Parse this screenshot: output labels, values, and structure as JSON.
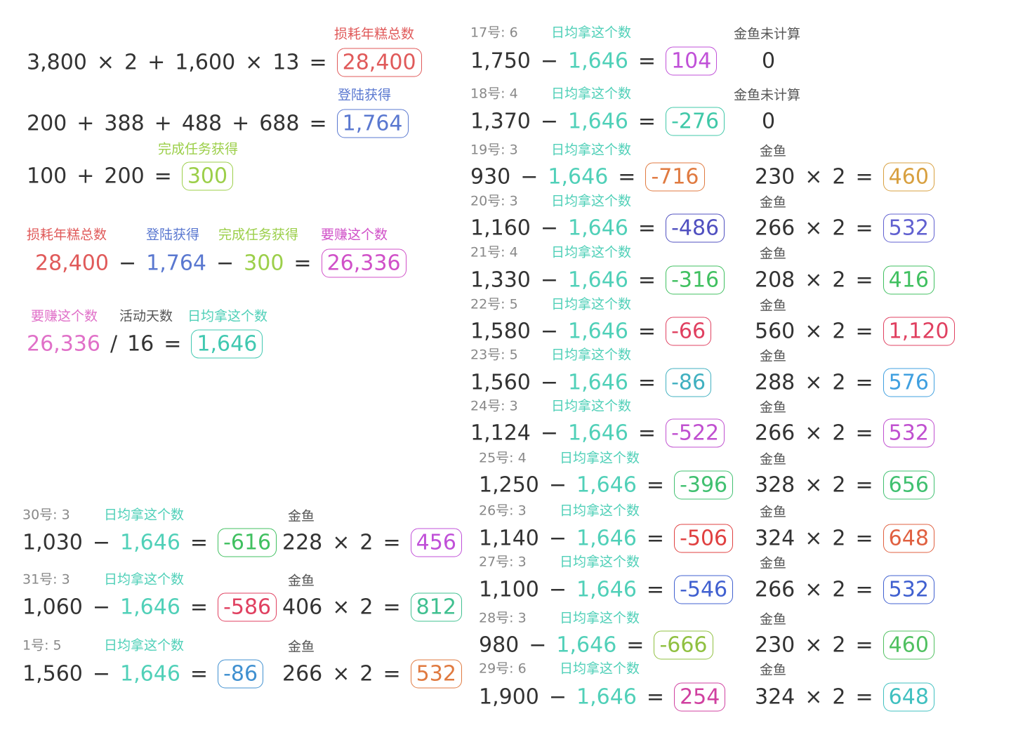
{
  "summary": [
    {
      "labels": [
        {
          "text": "损耗年糕总数",
          "color": "#e05a5a"
        }
      ],
      "expr": [
        "3,800",
        "×",
        "2",
        "+",
        "1,600",
        "×",
        "13",
        "="
      ],
      "result": "28,400",
      "result_color": "#e05a5a"
    },
    {
      "labels": [
        {
          "text": "登陆获得",
          "color": "#5a78d0"
        }
      ],
      "expr": [
        "200",
        "+",
        "388",
        "+",
        "488",
        "+",
        "688",
        "="
      ],
      "result": "1,764",
      "result_color": "#5a78d0"
    },
    {
      "labels": [
        {
          "text": "完成任务获得",
          "color": "#9ccf4a"
        }
      ],
      "expr": [
        "100",
        "+",
        "200",
        "="
      ],
      "result": "300",
      "result_color": "#9ccf4a"
    },
    {
      "labels": [
        {
          "text": "损耗年糕总数",
          "color": "#e05a5a"
        },
        {
          "text": "登陆获得",
          "color": "#5a78d0"
        },
        {
          "text": "完成任务获得",
          "color": "#9ccf4a"
        },
        {
          "text": "要赚这个数",
          "color": "#d050c8"
        }
      ],
      "expr": [
        "28,400",
        "−",
        "1,764",
        "−",
        "300",
        "="
      ],
      "expr_colors": [
        "#e05a5a",
        "#333333",
        "#5a78d0",
        "#333333",
        "#9ccf4a",
        "#333333"
      ],
      "result": "26,336",
      "result_color": "#d050c8"
    },
    {
      "labels": [
        {
          "text": "要赚这个数",
          "color": "#e070c8"
        },
        {
          "text": "活动天数",
          "color": "#555555"
        },
        {
          "text": "日均拿这个数",
          "color": "#50d0b8"
        }
      ],
      "expr": [
        "26,336",
        "/",
        "16",
        "="
      ],
      "expr_colors": [
        "#e070c8",
        "#333333",
        "#333333",
        "#333333"
      ],
      "result": "1,646",
      "result_color": "#40c8b0"
    }
  ],
  "right_column": [
    {
      "day": "17号: 6",
      "avg_label": "日均拿这个数",
      "expr": [
        "1,750",
        "−",
        "1,646",
        "="
      ],
      "result": "104",
      "result_color": "#c050d8",
      "fish_label": "金鱼未计算",
      "fish_expr": [
        "0"
      ]
    },
    {
      "day": "18号: 4",
      "avg_label": "日均拿这个数",
      "expr": [
        "1,370",
        "−",
        "1,646",
        "="
      ],
      "result": "-276",
      "result_color": "#40c8a8",
      "fish_label": "金鱼未计算",
      "fish_expr": [
        "0"
      ]
    },
    {
      "day": "19号: 3",
      "avg_label": "日均拿这个数",
      "expr": [
        "930",
        "−",
        "1,646",
        "="
      ],
      "result": "-716",
      "result_color": "#e07a40",
      "fish_label": "金鱼",
      "fish_expr": [
        "230",
        "×",
        "2",
        "="
      ],
      "fish_result": "460",
      "fish_color": "#d8a040"
    },
    {
      "day": "20号: 3",
      "avg_label": "日均拿这个数",
      "expr": [
        "1,160",
        "−",
        "1,646",
        "="
      ],
      "result": "-486",
      "result_color": "#5050c0",
      "fish_label": "金鱼",
      "fish_expr": [
        "266",
        "×",
        "2",
        "="
      ],
      "fish_result": "532",
      "fish_color": "#6060d0"
    },
    {
      "day": "21号: 4",
      "avg_label": "日均拿这个数",
      "expr": [
        "1,330",
        "−",
        "1,646",
        "="
      ],
      "result": "-316",
      "result_color": "#40c060",
      "fish_label": "金鱼",
      "fish_expr": [
        "208",
        "×",
        "2",
        "="
      ],
      "fish_result": "416",
      "fish_color": "#40c060"
    },
    {
      "day": "22号: 5",
      "avg_label": "日均拿这个数",
      "expr": [
        "1,580",
        "−",
        "1,646",
        "="
      ],
      "result": "-66",
      "result_color": "#e04060",
      "fish_label": "金鱼",
      "fish_expr": [
        "560",
        "×",
        "2",
        "="
      ],
      "fish_result": "1,120",
      "fish_color": "#e04060"
    },
    {
      "day": "23号: 5",
      "avg_label": "日均拿这个数",
      "expr": [
        "1,560",
        "−",
        "1,646",
        "="
      ],
      "result": "-86",
      "result_color": "#40b0c0",
      "fish_label": "金鱼",
      "fish_expr": [
        "288",
        "×",
        "2",
        "="
      ],
      "fish_result": "576",
      "fish_color": "#40a0e0"
    },
    {
      "day": "24号: 3",
      "avg_label": "日均拿这个数",
      "expr": [
        "1,124",
        "−",
        "1,646",
        "="
      ],
      "result": "-522",
      "result_color": "#c050d0",
      "fish_label": "金鱼",
      "fish_expr": [
        "266",
        "×",
        "2",
        "="
      ],
      "fish_result": "532",
      "fish_color": "#c050d0"
    },
    {
      "day": "25号: 4",
      "avg_label": "日均拿这个数",
      "expr": [
        "1,250",
        "−",
        "1,646",
        "="
      ],
      "result": "-396",
      "result_color": "#40c070",
      "fish_label": "金鱼",
      "fish_expr": [
        "328",
        "×",
        "2",
        "="
      ],
      "fish_result": "656",
      "fish_color": "#40c070"
    },
    {
      "day": "26号: 3",
      "avg_label": "日均拿这个数",
      "expr": [
        "1,140",
        "−",
        "1,646",
        "="
      ],
      "result": "-506",
      "result_color": "#e04040",
      "fish_label": "金鱼",
      "fish_expr": [
        "324",
        "×",
        "2",
        "="
      ],
      "fish_result": "648",
      "fish_color": "#e06040"
    },
    {
      "day": "27号: 3",
      "avg_label": "日均拿这个数",
      "expr": [
        "1,100",
        "−",
        "1,646",
        "="
      ],
      "result": "-546",
      "result_color": "#4060d0",
      "fish_label": "金鱼",
      "fish_expr": [
        "266",
        "×",
        "2",
        "="
      ],
      "fish_result": "532",
      "fish_color": "#4060d0"
    },
    {
      "day": "28号: 3",
      "avg_label": "日均拿这个数",
      "expr": [
        "980",
        "−",
        "1,646",
        "="
      ],
      "result": "-666",
      "result_color": "#90c040",
      "fish_label": "金鱼",
      "fish_expr": [
        "230",
        "×",
        "2",
        "="
      ],
      "fish_result": "460",
      "fish_color": "#50c060"
    },
    {
      "day": "29号: 6",
      "avg_label": "日均拿这个数",
      "expr": [
        "1,900",
        "−",
        "1,646",
        "="
      ],
      "result": "254",
      "result_color": "#d040a0",
      "fish_label": "金鱼",
      "fish_expr": [
        "324",
        "×",
        "2",
        "="
      ],
      "fish_result": "648",
      "fish_color": "#40c0c0"
    }
  ],
  "bottom_left": [
    {
      "day": "30号: 3",
      "avg_label": "日均拿这个数",
      "expr": [
        "1,030",
        "−",
        "1,646",
        "="
      ],
      "result": "-616",
      "result_color": "#40c060",
      "fish_label": "金鱼",
      "fish_expr": [
        "228",
        "×",
        "2",
        "="
      ],
      "fish_result": "456",
      "fish_color": "#c050d8"
    },
    {
      "day": "31号: 3",
      "avg_label": "日均拿这个数",
      "expr": [
        "1,060",
        "−",
        "1,646",
        "="
      ],
      "result": "-586",
      "result_color": "#e04060",
      "fish_label": "金鱼",
      "fish_expr": [
        "406",
        "×",
        "2",
        "="
      ],
      "fish_result": "812",
      "fish_color": "#40c090"
    },
    {
      "day": "1号: 5",
      "avg_label": "日均拿这个数",
      "expr": [
        "1,560",
        "−",
        "1,646",
        "="
      ],
      "result": "-86",
      "result_color": "#4090d0",
      "fish_label": "金鱼",
      "fish_expr": [
        "266",
        "×",
        "2",
        "="
      ],
      "fish_result": "532",
      "fish_color": "#e07a40"
    }
  ]
}
